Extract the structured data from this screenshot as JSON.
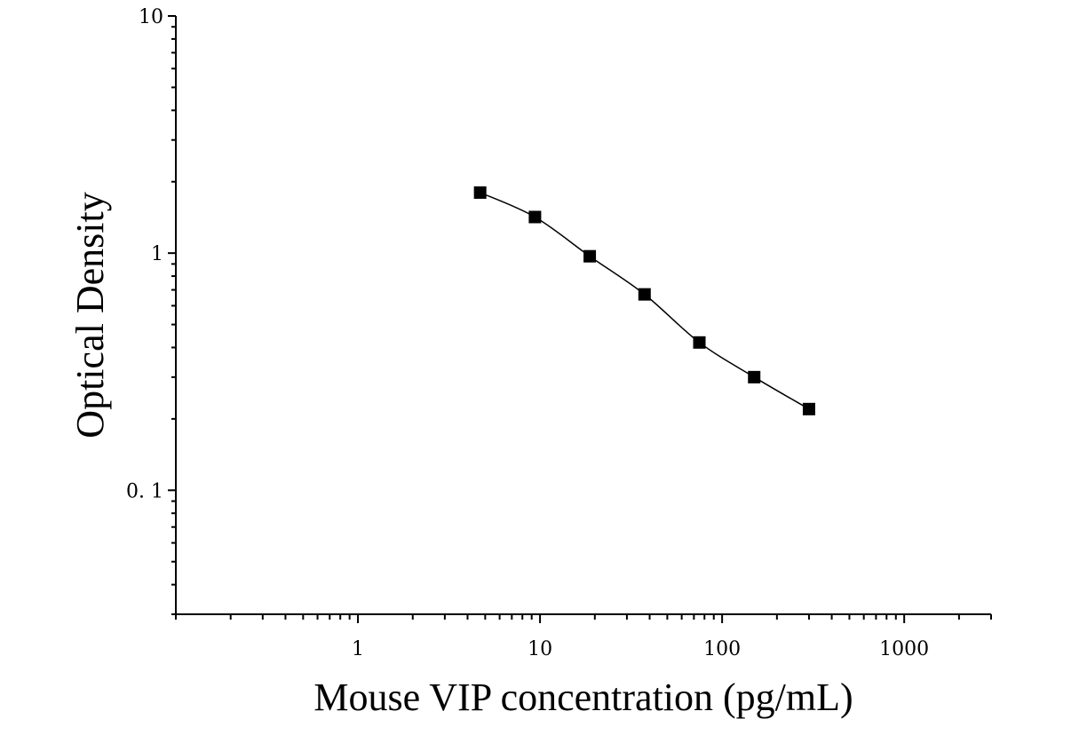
{
  "chart_data": {
    "type": "scatter",
    "title": "",
    "xlabel": "Mouse VIP concentration (pg/mL)",
    "ylabel": "Optical Density",
    "x_scale": "log",
    "y_scale": "log",
    "xlim": [
      0.1,
      3000
    ],
    "ylim": [
      0.03,
      10
    ],
    "x_ticks": [
      {
        "value": 1,
        "label": "1"
      },
      {
        "value": 10,
        "label": "10"
      },
      {
        "value": 100,
        "label": "100"
      },
      {
        "value": 1000,
        "label": "1000"
      }
    ],
    "y_ticks": [
      {
        "value": 0.1,
        "label": "0. 1"
      },
      {
        "value": 1,
        "label": "1"
      },
      {
        "value": 10,
        "label": "10"
      }
    ],
    "grid": false,
    "legend": "none",
    "marker": "square",
    "marker_color": "#000000",
    "line_color": "#000000",
    "series": [
      {
        "x": [
          4.69,
          9.38,
          18.75,
          37.5,
          75,
          150,
          300
        ],
        "y": [
          1.8,
          1.42,
          0.97,
          0.67,
          0.42,
          0.3,
          0.22
        ]
      }
    ]
  }
}
